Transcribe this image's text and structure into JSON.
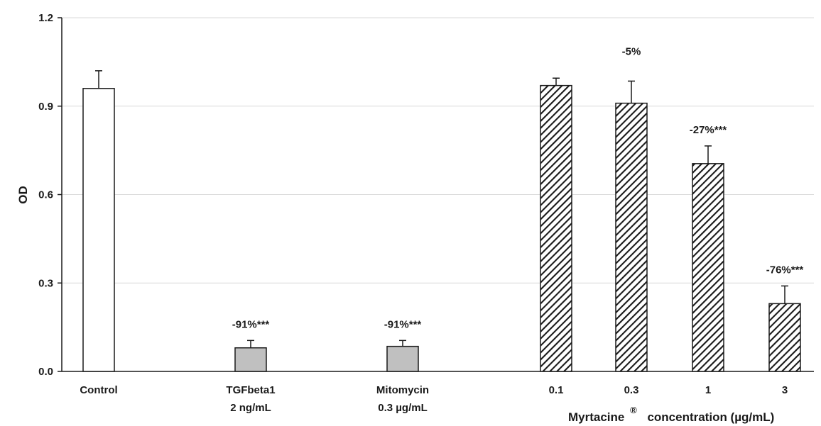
{
  "chart_data": {
    "type": "bar",
    "title": "",
    "xlabel": "",
    "ylabel": "OD",
    "ylim": [
      0,
      1.2
    ],
    "yticks": [
      "0.0",
      "0.3",
      "0.6",
      "0.9",
      "1.2"
    ],
    "grid": true,
    "categories": [
      {
        "line1": "Control",
        "line2": ""
      },
      {
        "line1": "TGFbeta1",
        "line2": "2 ng/mL"
      },
      {
        "line1": "Mitomycin",
        "line2": "0.3 µg/mL"
      },
      {
        "line1": "0.1",
        "line2": ""
      },
      {
        "line1": "0.3",
        "line2": ""
      },
      {
        "line1": "1",
        "line2": ""
      },
      {
        "line1": "3",
        "line2": ""
      }
    ],
    "values": [
      0.96,
      0.08,
      0.085,
      0.97,
      0.91,
      0.705,
      0.23
    ],
    "errors": [
      0.06,
      0.025,
      0.02,
      0.025,
      0.075,
      0.06,
      0.06
    ],
    "fills": [
      "#ffffff",
      "#c0c0c0",
      "#c0c0c0",
      "hatch",
      "hatch",
      "hatch",
      "hatch"
    ],
    "annotations": [
      "",
      "-91%***",
      "-91%***",
      "",
      "-5%",
      "-27%***",
      "-76%***"
    ],
    "group_label": {
      "prefix": "Myrtacine",
      "mark": "®",
      "suffix": "concentration (µg/mL)"
    }
  },
  "colors": {
    "gray_bar": "#c0c0c0",
    "hatch": "#1a1a1a",
    "axis": "#1a1a1a",
    "grid": "#d9d9d9"
  }
}
